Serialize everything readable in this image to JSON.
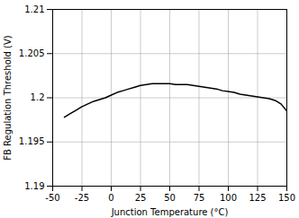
{
  "chart_data": {
    "type": "line",
    "xlabel": "Junction Temperature (°C)",
    "ylabel": "FB Regulation Threshold (V)",
    "x": [
      -40,
      -35,
      -30,
      -25,
      -20,
      -15,
      -10,
      -5,
      0,
      5,
      10,
      15,
      20,
      25,
      30,
      35,
      40,
      45,
      50,
      55,
      60,
      65,
      70,
      75,
      80,
      85,
      90,
      95,
      100,
      105,
      110,
      115,
      120,
      125,
      130,
      135,
      140,
      145,
      150
    ],
    "values": [
      1.1978,
      1.1982,
      1.1986,
      1.199,
      1.1993,
      1.1996,
      1.1998,
      1.2,
      1.2003,
      1.2006,
      1.2008,
      1.201,
      1.2012,
      1.2014,
      1.2015,
      1.2016,
      1.2016,
      1.2016,
      1.2016,
      1.2015,
      1.2015,
      1.2015,
      1.2014,
      1.2013,
      1.2012,
      1.2011,
      1.201,
      1.2008,
      1.2007,
      1.2006,
      1.2004,
      1.2003,
      1.2002,
      1.2001,
      1.2,
      1.1999,
      1.1997,
      1.1993,
      1.1985
    ],
    "color": "#000000",
    "xlim": [
      -50,
      150
    ],
    "ylim": [
      1.19,
      1.21
    ],
    "xticks": [
      -50,
      -25,
      0,
      25,
      50,
      75,
      100,
      125,
      150
    ],
    "yticks": [
      1.19,
      1.195,
      1.2,
      1.205,
      1.21
    ],
    "grid": true
  }
}
